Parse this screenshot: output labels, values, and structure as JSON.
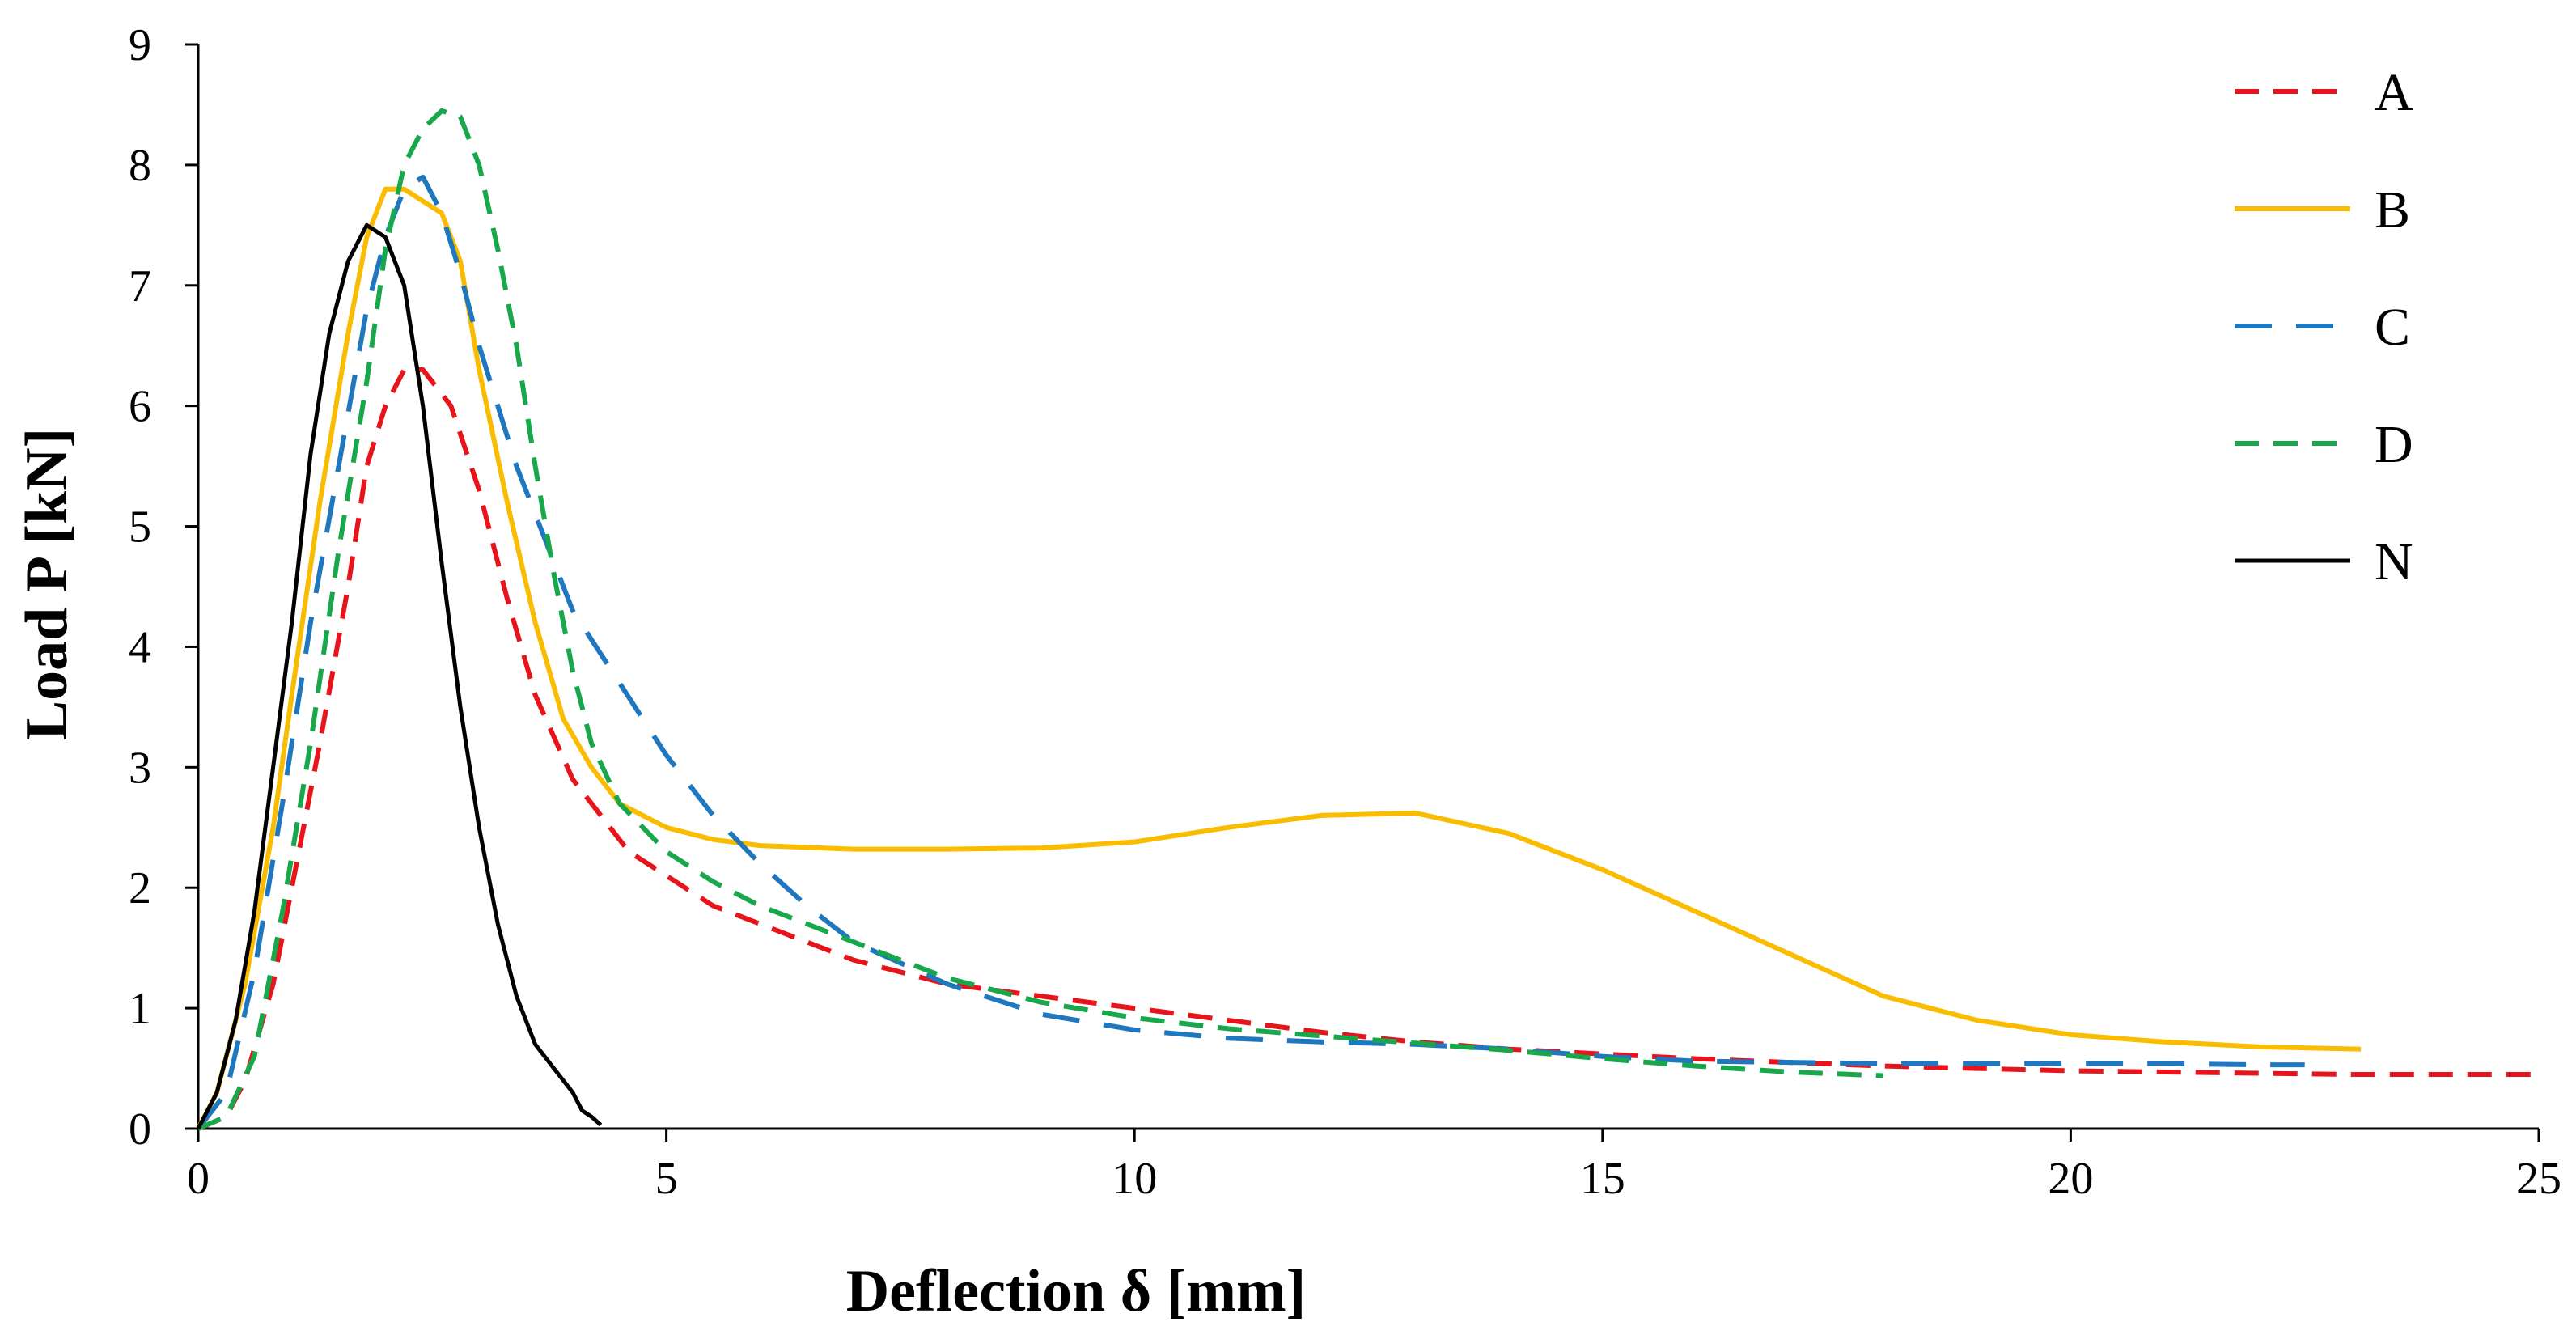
{
  "chart_data": {
    "type": "line",
    "title": "",
    "xlabel": "Deflection δ [mm]",
    "ylabel": "Load  P [kN]",
    "xlim": [
      0,
      25
    ],
    "ylim": [
      0,
      9
    ],
    "xticks": [
      0,
      5,
      10,
      15,
      20,
      25
    ],
    "yticks": [
      0,
      1,
      2,
      3,
      4,
      5,
      6,
      7,
      8,
      9
    ],
    "grid": false,
    "legend_position": "top-right",
    "series": [
      {
        "name": "A",
        "color": "#E8141B",
        "style": "dashed",
        "x": [
          0,
          0.3,
          0.5,
          0.8,
          1.0,
          1.3,
          1.6,
          1.8,
          2.0,
          2.2,
          2.4,
          2.5,
          2.7,
          3.0,
          3.3,
          3.6,
          4.0,
          4.3,
          4.6,
          5.0,
          5.5,
          6.0,
          7.0,
          8.0,
          9.0,
          10.0,
          11.0,
          12.0,
          13.0,
          14.0,
          15.0,
          16.0,
          17.0,
          18.0,
          19.0,
          20.0,
          21.0,
          22.0,
          23.0,
          24.0,
          25.0
        ],
        "y": [
          0,
          0.1,
          0.4,
          1.2,
          2.0,
          3.2,
          4.5,
          5.5,
          6.0,
          6.3,
          6.3,
          6.2,
          6.0,
          5.3,
          4.4,
          3.6,
          2.9,
          2.6,
          2.3,
          2.1,
          1.85,
          1.7,
          1.4,
          1.2,
          1.1,
          1.0,
          0.9,
          0.8,
          0.72,
          0.66,
          0.62,
          0.58,
          0.55,
          0.52,
          0.5,
          0.48,
          0.47,
          0.46,
          0.45,
          0.45,
          0.45
        ]
      },
      {
        "name": "B",
        "color": "#F9BC00",
        "style": "solid",
        "x": [
          0,
          0.2,
          0.5,
          0.8,
          1.0,
          1.3,
          1.6,
          1.8,
          2.0,
          2.2,
          2.4,
          2.6,
          2.8,
          3.0,
          3.3,
          3.6,
          3.9,
          4.2,
          4.5,
          5.0,
          5.5,
          6.0,
          7.0,
          8.0,
          9.0,
          10.0,
          11.0,
          12.0,
          13.0,
          14.0,
          15.0,
          16.0,
          17.0,
          18.0,
          19.0,
          20.0,
          21.0,
          22.0,
          23.1
        ],
        "y": [
          0,
          0.3,
          1.2,
          2.5,
          3.6,
          5.2,
          6.6,
          7.4,
          7.8,
          7.8,
          7.7,
          7.6,
          7.2,
          6.3,
          5.2,
          4.2,
          3.4,
          3.0,
          2.7,
          2.5,
          2.4,
          2.35,
          2.32,
          2.32,
          2.33,
          2.38,
          2.5,
          2.6,
          2.62,
          2.45,
          2.15,
          1.8,
          1.45,
          1.1,
          0.9,
          0.78,
          0.72,
          0.68,
          0.66
        ]
      },
      {
        "name": "C",
        "color": "#1F77BF",
        "style": "longdash",
        "x": [
          0,
          0.3,
          0.6,
          0.9,
          1.2,
          1.5,
          1.8,
          2.0,
          2.2,
          2.4,
          2.6,
          2.8,
          3.0,
          3.2,
          3.4,
          3.7,
          4.0,
          4.5,
          5.0,
          5.5,
          6.0,
          6.5,
          7.0,
          8.0,
          9.0,
          10.0,
          11.0,
          12.0,
          13.0,
          14.0,
          15.0,
          16.0,
          17.0,
          18.0,
          19.0,
          20.0,
          21.0,
          22.0,
          22.5
        ],
        "y": [
          0,
          0.3,
          1.3,
          2.7,
          4.2,
          5.5,
          6.8,
          7.4,
          7.8,
          7.9,
          7.6,
          7.1,
          6.5,
          6.0,
          5.5,
          4.9,
          4.3,
          3.7,
          3.1,
          2.6,
          2.2,
          1.85,
          1.55,
          1.2,
          0.95,
          0.82,
          0.75,
          0.72,
          0.7,
          0.66,
          0.6,
          0.56,
          0.55,
          0.54,
          0.54,
          0.54,
          0.54,
          0.53,
          0.53
        ]
      },
      {
        "name": "D",
        "color": "#18A84B",
        "style": "dashed",
        "x": [
          0,
          0.3,
          0.6,
          0.9,
          1.2,
          1.5,
          1.8,
          2.0,
          2.2,
          2.4,
          2.6,
          2.8,
          3.0,
          3.2,
          3.4,
          3.6,
          3.8,
          4.0,
          4.2,
          4.5,
          5.0,
          5.5,
          6.0,
          7.0,
          8.0,
          9.0,
          10.0,
          11.0,
          12.0,
          13.0,
          14.0,
          15.0,
          16.0,
          17.0,
          18.0
        ],
        "y": [
          0,
          0.1,
          0.6,
          1.8,
          3.2,
          4.8,
          6.2,
          7.3,
          8.0,
          8.3,
          8.45,
          8.4,
          8.0,
          7.3,
          6.5,
          5.5,
          4.6,
          3.8,
          3.2,
          2.7,
          2.3,
          2.05,
          1.85,
          1.55,
          1.25,
          1.05,
          0.92,
          0.83,
          0.77,
          0.71,
          0.65,
          0.58,
          0.52,
          0.47,
          0.44
        ]
      },
      {
        "name": "N",
        "color": "#000000",
        "style": "solid",
        "x": [
          0,
          0.2,
          0.4,
          0.6,
          0.8,
          1.0,
          1.2,
          1.4,
          1.6,
          1.8,
          2.0,
          2.2,
          2.4,
          2.6,
          2.8,
          3.0,
          3.2,
          3.4,
          3.6,
          3.8,
          4.0,
          4.1,
          4.2,
          4.3
        ],
        "y": [
          0,
          0.3,
          0.9,
          1.8,
          3.0,
          4.2,
          5.6,
          6.6,
          7.2,
          7.5,
          7.4,
          7.0,
          6.0,
          4.7,
          3.5,
          2.5,
          1.7,
          1.1,
          0.7,
          0.5,
          0.3,
          0.15,
          0.1,
          0.03
        ]
      }
    ]
  }
}
